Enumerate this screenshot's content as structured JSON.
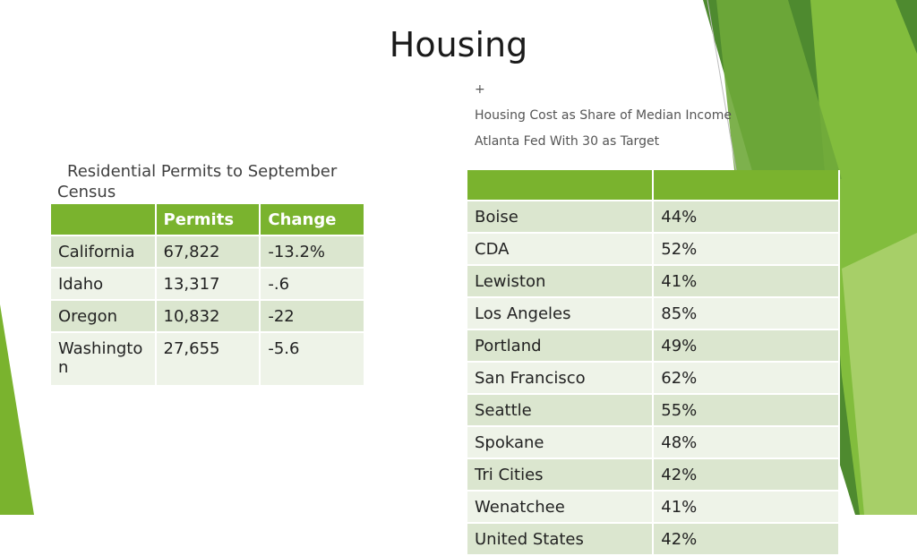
{
  "slide": {
    "title": "Housing",
    "right_text": {
      "bullet": "+",
      "line1": "Housing Cost as Share of Median Income",
      "line2": "Atlanta Fed  With 30 as Target"
    },
    "left_caption": {
      "line1": "Residential Permits to September",
      "line2": "Census"
    }
  },
  "permits_table": {
    "headers": [
      "",
      "Permits",
      "Change"
    ],
    "rows": [
      {
        "state": "California",
        "permits": "67,822",
        "change": "-13.2%"
      },
      {
        "state": "Idaho",
        "permits": "13,317",
        "change": "-.6"
      },
      {
        "state": "Oregon",
        "permits": "10,832",
        "change": "-22"
      },
      {
        "state": "Washington",
        "permits": "27,655",
        "change": "-5.6"
      }
    ]
  },
  "cost_table": {
    "headers": [
      "",
      ""
    ],
    "rows": [
      {
        "city": "Boise",
        "share": "44%"
      },
      {
        "city": "CDA",
        "share": "52%"
      },
      {
        "city": "Lewiston",
        "share": "41%"
      },
      {
        "city": "Los Angeles",
        "share": "85%"
      },
      {
        "city": "Portland",
        "share": "49%"
      },
      {
        "city": "San Francisco",
        "share": "62%"
      },
      {
        "city": "Seattle",
        "share": "55%"
      },
      {
        "city": "Spokane",
        "share": "48%"
      },
      {
        "city": "Tri Cities",
        "share": "42%"
      },
      {
        "city": "Wenatchee",
        "share": "41%"
      },
      {
        "city": "United States",
        "share": "42%"
      }
    ]
  },
  "colors": {
    "accent_green": "#7ab32e",
    "dark_green": "#4e8a2f",
    "row_band_dark": "#dbe6cf",
    "row_band_light": "#eef3e8"
  }
}
